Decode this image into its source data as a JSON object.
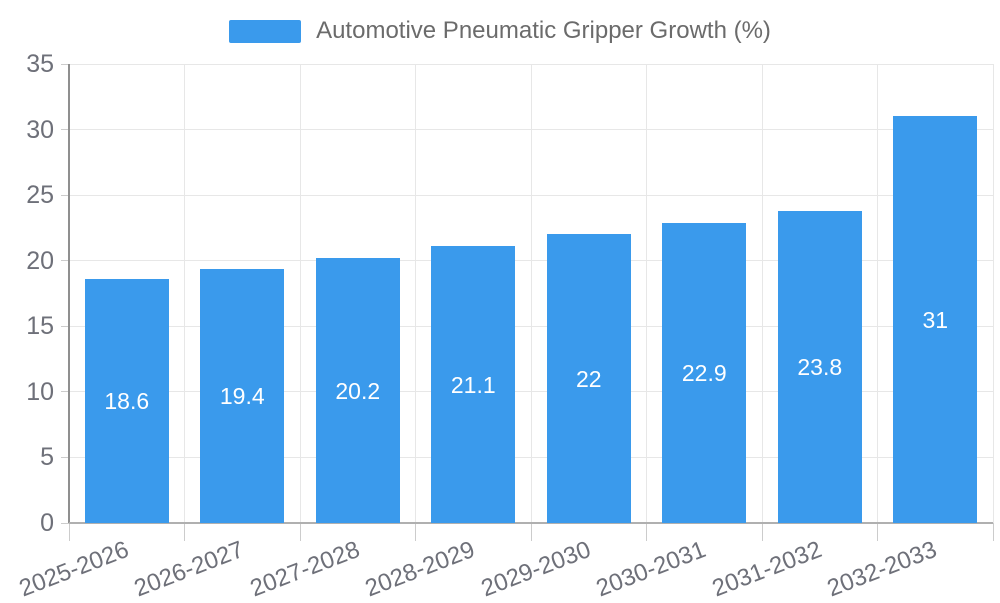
{
  "legend": {
    "label": "Automotive Pneumatic Gripper Growth (%)"
  },
  "colors": {
    "bar": "#3a9aec",
    "grid": "#e7e7e7",
    "axis_x": "#b0b0b0",
    "axis_y": "#8f8f8f",
    "tick": "#cccccc",
    "axis_text": "#6e7079",
    "bar_label_text": "#ffffff",
    "legend_text": "#6b6b6b"
  },
  "chart_data": {
    "type": "bar",
    "title": "Automotive Pneumatic Gripper Growth (%)",
    "series_name": "Automotive Pneumatic Gripper Growth (%)",
    "categories": [
      "2025-2026",
      "2026-2027",
      "2027-2028",
      "2028-2029",
      "2029-2030",
      "2030-2031",
      "2031-2032",
      "2032-2033"
    ],
    "values": [
      18.6,
      19.4,
      20.2,
      21.1,
      22,
      22.9,
      23.8,
      31
    ],
    "yticks": [
      0,
      5,
      10,
      15,
      20,
      25,
      30,
      35
    ],
    "ylim": [
      0,
      35
    ],
    "xlabel": "",
    "ylabel": "",
    "grid": true,
    "legend_position": "top-center",
    "bar_label_position": "inside-center",
    "x_label_rotation_deg": -21
  }
}
